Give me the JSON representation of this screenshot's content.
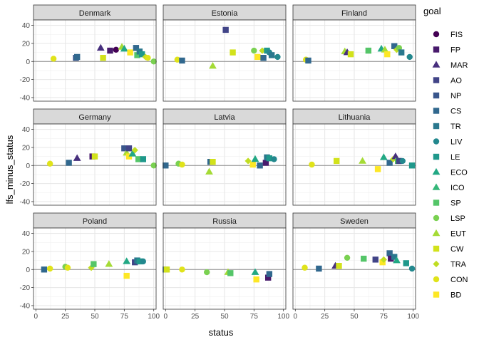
{
  "chart_data": {
    "type": "scatter",
    "facet_by": "country",
    "xlabel": "status",
    "ylabel": "lfs_minus_status",
    "xlim": [
      -2,
      102
    ],
    "ylim": [
      -44,
      46
    ],
    "x_ticks": [
      0,
      25,
      50,
      75,
      100
    ],
    "y_ticks": [
      -40,
      -20,
      0,
      20,
      40
    ],
    "reference_line_y": 0,
    "grid": true,
    "legend": {
      "title": "goal",
      "position": "right",
      "items": [
        {
          "name": "FIS",
          "shape": "circle",
          "color": "#440154"
        },
        {
          "name": "FP",
          "shape": "square",
          "color": "#481A6C"
        },
        {
          "name": "MAR",
          "shape": "triangle",
          "color": "#472F7D"
        },
        {
          "name": "AO",
          "shape": "square",
          "color": "#414487"
        },
        {
          "name": "NP",
          "shape": "square",
          "color": "#39568C"
        },
        {
          "name": "CS",
          "shape": "square",
          "color": "#31688E"
        },
        {
          "name": "TR",
          "shape": "square",
          "color": "#2A788E"
        },
        {
          "name": "LIV",
          "shape": "circle",
          "color": "#23888E"
        },
        {
          "name": "LE",
          "shape": "square",
          "color": "#1F988B"
        },
        {
          "name": "ECO",
          "shape": "triangle",
          "color": "#22A884"
        },
        {
          "name": "ICO",
          "shape": "triangle",
          "color": "#35B779"
        },
        {
          "name": "SP",
          "shape": "square",
          "color": "#54C568"
        },
        {
          "name": "LSP",
          "shape": "circle",
          "color": "#7AD151"
        },
        {
          "name": "EUT",
          "shape": "triangle",
          "color": "#A5DB36"
        },
        {
          "name": "CW",
          "shape": "square",
          "color": "#D2E21B"
        },
        {
          "name": "TRA",
          "shape": "diamond",
          "color": "#C0DD22"
        },
        {
          "name": "CON",
          "shape": "circle",
          "color": "#E0E31A"
        },
        {
          "name": "BD",
          "shape": "square",
          "color": "#FDE725"
        }
      ]
    },
    "panels": [
      {
        "country": "Denmark",
        "points": [
          {
            "goal": "CON",
            "x": 15,
            "y": 3
          },
          {
            "goal": "NP",
            "x": 34,
            "y": 4
          },
          {
            "goal": "CS",
            "x": 35,
            "y": 5
          },
          {
            "goal": "MAR",
            "x": 55,
            "y": 15
          },
          {
            "goal": "CW",
            "x": 57,
            "y": 4
          },
          {
            "goal": "FP",
            "x": 63,
            "y": 12
          },
          {
            "goal": "FIS",
            "x": 68,
            "y": 13
          },
          {
            "goal": "EUT",
            "x": 73,
            "y": 16
          },
          {
            "goal": "ECO",
            "x": 75,
            "y": 14
          },
          {
            "goal": "BD",
            "x": 80,
            "y": 10
          },
          {
            "goal": "CS",
            "x": 85,
            "y": 15
          },
          {
            "goal": "SP",
            "x": 86,
            "y": 7
          },
          {
            "goal": "TR",
            "x": 88,
            "y": 11
          },
          {
            "goal": "LE",
            "x": 90,
            "y": 8
          },
          {
            "goal": "TRA",
            "x": 93,
            "y": 5
          },
          {
            "goal": "CON",
            "x": 95,
            "y": 4
          },
          {
            "goal": "LSP",
            "x": 100,
            "y": 0
          }
        ]
      },
      {
        "country": "Estonia",
        "points": [
          {
            "goal": "CON",
            "x": 10,
            "y": 2
          },
          {
            "goal": "CS",
            "x": 14,
            "y": 1
          },
          {
            "goal": "EUT",
            "x": 40,
            "y": -5
          },
          {
            "goal": "AO",
            "x": 51,
            "y": 35
          },
          {
            "goal": "CW",
            "x": 57,
            "y": 10
          },
          {
            "goal": "LSP",
            "x": 75,
            "y": 12
          },
          {
            "goal": "BD",
            "x": 78,
            "y": 5
          },
          {
            "goal": "TRA",
            "x": 82,
            "y": 12
          },
          {
            "goal": "CS",
            "x": 83,
            "y": 4
          },
          {
            "goal": "LE",
            "x": 86,
            "y": 12
          },
          {
            "goal": "LIV",
            "x": 88,
            "y": 10
          },
          {
            "goal": "TR",
            "x": 90,
            "y": 7
          },
          {
            "goal": "LIV",
            "x": 95,
            "y": 5
          }
        ]
      },
      {
        "country": "Finland",
        "points": [
          {
            "goal": "CON",
            "x": 9,
            "y": 2
          },
          {
            "goal": "CS",
            "x": 11,
            "y": 1
          },
          {
            "goal": "EUT",
            "x": 42,
            "y": 11
          },
          {
            "goal": "MAR",
            "x": 44,
            "y": 10
          },
          {
            "goal": "CW",
            "x": 47,
            "y": 8
          },
          {
            "goal": "SP",
            "x": 62,
            "y": 12
          },
          {
            "goal": "ECO",
            "x": 73,
            "y": 14
          },
          {
            "goal": "EUT",
            "x": 76,
            "y": 13
          },
          {
            "goal": "BD",
            "x": 78,
            "y": 8
          },
          {
            "goal": "CS",
            "x": 84,
            "y": 17
          },
          {
            "goal": "TRA",
            "x": 86,
            "y": 13
          },
          {
            "goal": "LSP",
            "x": 88,
            "y": 15
          },
          {
            "goal": "TR",
            "x": 90,
            "y": 10
          },
          {
            "goal": "LIV",
            "x": 97,
            "y": 5
          }
        ]
      },
      {
        "country": "Germany",
        "points": [
          {
            "goal": "CON",
            "x": 12,
            "y": 2
          },
          {
            "goal": "CS",
            "x": 28,
            "y": 3
          },
          {
            "goal": "MAR",
            "x": 35,
            "y": 8
          },
          {
            "goal": "FP",
            "x": 48,
            "y": 10
          },
          {
            "goal": "CW",
            "x": 50,
            "y": 10
          },
          {
            "goal": "NP",
            "x": 75,
            "y": 19
          },
          {
            "goal": "EUT",
            "x": 77,
            "y": 14
          },
          {
            "goal": "AO",
            "x": 79,
            "y": 19
          },
          {
            "goal": "BD",
            "x": 79,
            "y": 10
          },
          {
            "goal": "ECO",
            "x": 82,
            "y": 13
          },
          {
            "goal": "TRA",
            "x": 84,
            "y": 17
          },
          {
            "goal": "SP",
            "x": 87,
            "y": 7
          },
          {
            "goal": "LE",
            "x": 91,
            "y": 7
          },
          {
            "goal": "LSP",
            "x": 100,
            "y": 0
          }
        ]
      },
      {
        "country": "Latvia",
        "points": [
          {
            "goal": "CS",
            "x": 0,
            "y": 0
          },
          {
            "goal": "LSP",
            "x": 11,
            "y": 2
          },
          {
            "goal": "CON",
            "x": 14,
            "y": 1
          },
          {
            "goal": "EUT",
            "x": 37,
            "y": -7
          },
          {
            "goal": "CS",
            "x": 38,
            "y": 4
          },
          {
            "goal": "CW",
            "x": 40,
            "y": 4
          },
          {
            "goal": "TRA",
            "x": 70,
            "y": 5
          },
          {
            "goal": "BD",
            "x": 74,
            "y": 1
          },
          {
            "goal": "ECO",
            "x": 76,
            "y": 7
          },
          {
            "goal": "CS",
            "x": 80,
            "y": 0
          },
          {
            "goal": "FP",
            "x": 85,
            "y": 3
          },
          {
            "goal": "TR",
            "x": 86,
            "y": 9
          },
          {
            "goal": "LE",
            "x": 88,
            "y": 8
          },
          {
            "goal": "LIV",
            "x": 92,
            "y": 7
          }
        ]
      },
      {
        "country": "Lithuania",
        "points": [
          {
            "goal": "CON",
            "x": 14,
            "y": 1
          },
          {
            "goal": "CW",
            "x": 35,
            "y": 5
          },
          {
            "goal": "EUT",
            "x": 57,
            "y": 5
          },
          {
            "goal": "BD",
            "x": 70,
            "y": -4
          },
          {
            "goal": "ECO",
            "x": 75,
            "y": 9
          },
          {
            "goal": "CS",
            "x": 80,
            "y": 3
          },
          {
            "goal": "TRA",
            "x": 83,
            "y": 7
          },
          {
            "goal": "MAR",
            "x": 85,
            "y": 10
          },
          {
            "goal": "SP",
            "x": 87,
            "y": 5
          },
          {
            "goal": "AO",
            "x": 88,
            "y": 5
          },
          {
            "goal": "LIV",
            "x": 91,
            "y": 5
          },
          {
            "goal": "LE",
            "x": 99,
            "y": 0
          }
        ]
      },
      {
        "country": "Poland",
        "points": [
          {
            "goal": "CS",
            "x": 7,
            "y": 0
          },
          {
            "goal": "CON",
            "x": 12,
            "y": 1
          },
          {
            "goal": "LSP",
            "x": 25,
            "y": 3
          },
          {
            "goal": "CON",
            "x": 27,
            "y": 2
          },
          {
            "goal": "TRA",
            "x": 47,
            "y": 2
          },
          {
            "goal": "SP",
            "x": 49,
            "y": 6
          },
          {
            "goal": "EUT",
            "x": 62,
            "y": 6
          },
          {
            "goal": "BD",
            "x": 77,
            "y": -7
          },
          {
            "goal": "ECO",
            "x": 77,
            "y": 9
          },
          {
            "goal": "AO",
            "x": 84,
            "y": 8
          },
          {
            "goal": "TR",
            "x": 86,
            "y": 10
          },
          {
            "goal": "LE",
            "x": 88,
            "y": 9
          },
          {
            "goal": "LIV",
            "x": 91,
            "y": 9
          }
        ]
      },
      {
        "country": "Russia",
        "points": [
          {
            "goal": "CS",
            "x": 0,
            "y": 0
          },
          {
            "goal": "CW",
            "x": 1,
            "y": 0
          },
          {
            "goal": "CON",
            "x": 14,
            "y": 0
          },
          {
            "goal": "LSP",
            "x": 35,
            "y": -3
          },
          {
            "goal": "EUT",
            "x": 53,
            "y": -3
          },
          {
            "goal": "SP",
            "x": 55,
            "y": -4
          },
          {
            "goal": "ECO",
            "x": 76,
            "y": -3
          },
          {
            "goal": "BD",
            "x": 77,
            "y": -11
          },
          {
            "goal": "FP",
            "x": 87,
            "y": -9
          },
          {
            "goal": "CS",
            "x": 88,
            "y": -5
          }
        ]
      },
      {
        "country": "Sweden",
        "points": [
          {
            "goal": "CON",
            "x": 8,
            "y": 2
          },
          {
            "goal": "CS",
            "x": 20,
            "y": 1
          },
          {
            "goal": "MAR",
            "x": 34,
            "y": 4
          },
          {
            "goal": "CW",
            "x": 37,
            "y": 4
          },
          {
            "goal": "LSP",
            "x": 44,
            "y": 13
          },
          {
            "goal": "SP",
            "x": 58,
            "y": 12
          },
          {
            "goal": "AO",
            "x": 68,
            "y": 11
          },
          {
            "goal": "BD",
            "x": 74,
            "y": 8
          },
          {
            "goal": "TRA",
            "x": 75,
            "y": 11
          },
          {
            "goal": "CS",
            "x": 80,
            "y": 18
          },
          {
            "goal": "FP",
            "x": 81,
            "y": 12
          },
          {
            "goal": "TR",
            "x": 84,
            "y": 14
          },
          {
            "goal": "ECO",
            "x": 86,
            "y": 10
          },
          {
            "goal": "LE",
            "x": 94,
            "y": 7
          },
          {
            "goal": "LIV",
            "x": 99,
            "y": 1
          }
        ]
      }
    ]
  }
}
